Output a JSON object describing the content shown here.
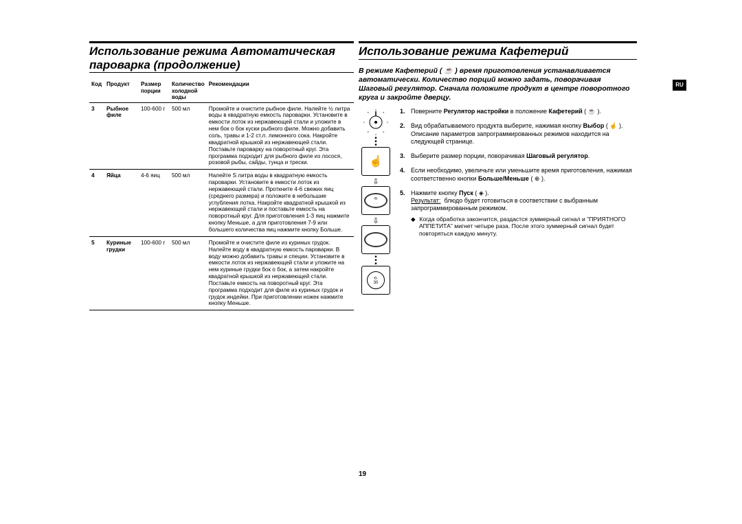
{
  "page_number": "19",
  "ru_tab": "RU",
  "left": {
    "title": "Использование режима Автоматическая пароварка (продолжение)",
    "headers": {
      "code": "Код",
      "product": "Продукт",
      "size": "Размер порции",
      "qty": "Количество холодной воды",
      "rec": "Рекомендации"
    },
    "rows": [
      {
        "code": "3",
        "product": "Рыбное филе",
        "size": "100-600 г",
        "qty": "500 мл",
        "rec": "Промойте и очистите рыбное филе. Налейте ½ литра воды в квадратную емкость пароварки. Установите в емкости лоток из нержавеющей стали и уложите в нем бок о бок куски рыбного филе. Можно добавить соль, травы и 1-2 ст.л. лимонного сока. Накройте квадратной крышкой из нержавеющей стали. Поставьте пароварку на поворотный круг. Эта программа подходит для рыбного филе из лосося, розовой рыбы, сайды, тунца и трески."
      },
      {
        "code": "4",
        "product": "Яйца",
        "size": "4-6 яиц",
        "qty": "500 мл",
        "rec": "Налейте S литра воды в квадратную емкость пароварки. Установите в емкости лоток из нержавеющей стали. Проткните 4-6 свежих яиц (среднего размера) и положите в небольшие углубления лотка. Накройте квадратной крышкой из нержавеющей стали и поставьте емкость на поворотный круг. Для приготовления 1-3 яиц нажмите кнопку Меньше, а для приготовления 7-9 или большего количества яиц нажмите кнопку Больше."
      },
      {
        "code": "5",
        "product": "Куриные грудки",
        "size": "100-600 г",
        "qty": "500 мл",
        "rec": "Промойте и очистите филе из куриных грудок. Налейте воду в квадратную емкость пароварки. В воду можно добавить травы и специи. Установите в емкости лоток из нержавеющей стали и уложите на нем куриные грудки бок о бок, а затем накройте квадратной крышкой из нержавеющей стали. Поставьте емкость на поворотный круг. Эта программа подходит для филе из куриных грудок и грудок индейки. При приготовлении ножек нажмите кнопку Меньше."
      }
    ]
  },
  "right": {
    "title": "Использование режима Кафетерий",
    "intro": "В режиме Кафетерий ( ☕ ) время приготовления устанавливается автоматически. Количество порций можно задать, поворачивая Шаговый регулятор. Сначала положите продукт в центре поворотного круга и закройте дверцу.",
    "steps": [
      {
        "n": "1.",
        "t": "Поверните <b>Регулятор настройки</b> в положение <b>Кафетерий</b> ( ☕ )."
      },
      {
        "n": "2.",
        "t": "Вид обрабатываемого продукта выберите, нажимая кнопку <b>Выбор</b> ( ☝ ). Описание параметров запрограммированных режимов находится на следующей странице."
      },
      {
        "n": "3.",
        "t": "Выберите размер порции, поворачивая <b>Шаговый регулятор</b>."
      },
      {
        "n": "4.",
        "t": "Если необходимо, увеличьте или уменьшите время приготовления, нажимая соответственно кнопки <b>Больше/Меньше</b> ( ⊕ )."
      },
      {
        "n": "5.",
        "t": "Нажмите кнопку <b>Пуск</b> ( ◈ ).<br><span class=\"underline\">Результат:</span>&nbsp;&nbsp;блюдо будет готовиться в соответствии с выбранным запрограммированным режимом.<div class=\"sublist\"><span class=\"bullet\">◆</span> Когда обработка закончится, раздастся зуммерный сигнал и \"ПРИЯТНОГО АППЕТИТА\" мигнет четыре раза. После этого зуммерный сигнал будет повторяться каждую минуту.</div>"
      }
    ]
  }
}
